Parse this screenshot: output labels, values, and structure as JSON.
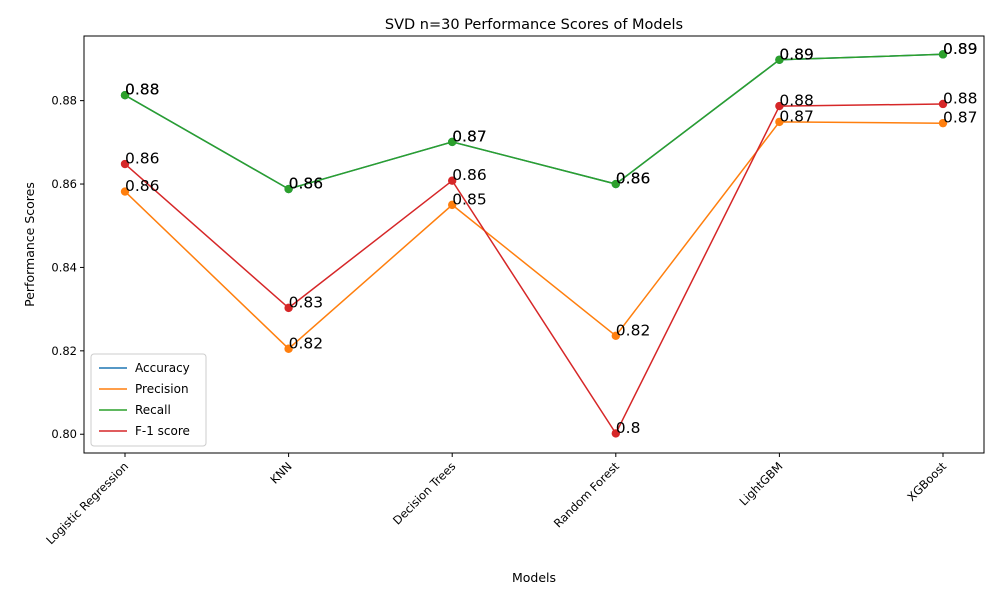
{
  "chart_data": {
    "type": "line",
    "title": "SVD n=30  Performance Scores of Models",
    "xlabel": "Models",
    "ylabel": "Performance Scores",
    "categories": [
      "Logistic Regression",
      "KNN",
      "Decision Trees",
      "Random Forest",
      "LightGBM",
      "XGBoost"
    ],
    "ylim": [
      0.7955,
      0.8955
    ],
    "yticks": [
      "0.80",
      "0.82",
      "0.84",
      "0.86",
      "0.88"
    ],
    "ytick_values": [
      0.8,
      0.82,
      0.84,
      0.86,
      0.88
    ],
    "legend_position": "lower-left",
    "grid": false,
    "series": [
      {
        "name": "Accuracy",
        "color": "#1f77b4",
        "values": [
          0.8813,
          0.8588,
          0.8701,
          0.86,
          0.8898,
          0.8911
        ],
        "labels": [
          "0.88",
          "0.86",
          "0.87",
          "0.86",
          "0.89",
          "0.89"
        ]
      },
      {
        "name": "Precision",
        "color": "#ff7f0e",
        "values": [
          0.8582,
          0.8205,
          0.855,
          0.8236,
          0.8749,
          0.8746
        ],
        "labels": [
          "0.86",
          "0.82",
          "0.85",
          "0.82",
          "0.87",
          "0.87"
        ]
      },
      {
        "name": "Recall",
        "color": "#2ca02c",
        "values": [
          0.8813,
          0.8588,
          0.8701,
          0.86,
          0.8898,
          0.8911
        ],
        "labels": [
          "0.88",
          "0.86",
          "0.87",
          "0.86",
          "0.89",
          "0.89"
        ]
      },
      {
        "name": "F-1 score",
        "color": "#d62728",
        "values": [
          0.8648,
          0.8303,
          0.8608,
          0.8002,
          0.8787,
          0.8792
        ],
        "labels": [
          "0.86",
          "0.83",
          "0.86",
          "0.8",
          "0.88",
          "0.88"
        ]
      }
    ]
  }
}
